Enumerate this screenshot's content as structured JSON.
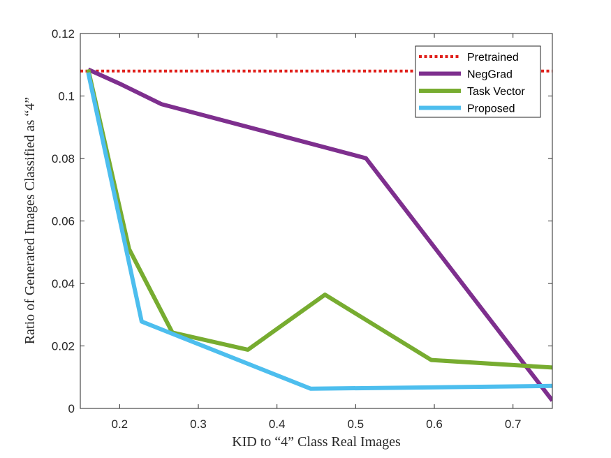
{
  "chart_data": {
    "type": "line",
    "title": "",
    "xlabel": "KID to “4” Class Real Images",
    "ylabel": "Ratio of Generated Images Classified as “4”",
    "xlim": [
      0.15,
      0.75
    ],
    "ylim": [
      0,
      0.12
    ],
    "xticks": [
      0.2,
      0.3,
      0.4,
      0.5,
      0.6,
      0.7
    ],
    "xtick_labels": [
      "0.2",
      "0.3",
      "0.4",
      "0.5",
      "0.6",
      "0.7"
    ],
    "yticks": [
      0,
      0.02,
      0.04,
      0.06,
      0.08,
      0.1,
      0.12
    ],
    "ytick_labels": [
      "0",
      "0.02",
      "0.04",
      "0.06",
      "0.08",
      "0.1",
      "0.12"
    ],
    "grid": false,
    "legend_position": "top-right",
    "series": [
      {
        "name": "Pretrained",
        "color": "#e0201b",
        "style": "dotted",
        "x": [
          0.15,
          0.75
        ],
        "y": [
          0.108,
          0.108
        ]
      },
      {
        "name": "NegGrad",
        "color": "#7e2f8e",
        "style": "solid",
        "x": [
          0.16,
          0.202,
          0.253,
          0.513,
          0.75
        ],
        "y": [
          0.1085,
          0.1037,
          0.0974,
          0.0801,
          0.0025
        ]
      },
      {
        "name": "Task Vector",
        "color": "#77ac30",
        "style": "solid",
        "x": [
          0.16,
          0.212,
          0.267,
          0.363,
          0.461,
          0.596,
          0.75
        ],
        "y": [
          0.1085,
          0.051,
          0.0243,
          0.0188,
          0.0364,
          0.0155,
          0.0131
        ]
      },
      {
        "name": "Proposed",
        "color": "#4dbeee",
        "style": "solid",
        "x": [
          0.16,
          0.228,
          0.443,
          0.75
        ],
        "y": [
          0.1075,
          0.0278,
          0.0063,
          0.0072
        ]
      }
    ]
  }
}
